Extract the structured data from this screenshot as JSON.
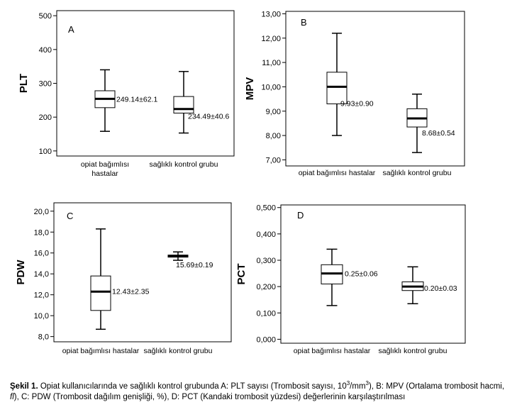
{
  "chart_data": [
    {
      "type": "boxplot",
      "panel_label": "A",
      "ylabel": "PLT",
      "ylim": [
        85,
        515
      ],
      "yticks": [
        100,
        200,
        300,
        400,
        500
      ],
      "ytick_labels": [
        "100",
        "200",
        "300",
        "400",
        "500"
      ],
      "categories": [
        [
          "opiat bağımlısı",
          "hastalar"
        ],
        [
          "sağlıklı kontrol grubu"
        ]
      ],
      "boxes": [
        {
          "min": 158,
          "q1": 228,
          "median": 254,
          "q3": 278,
          "max": 340,
          "label": "249.14±62.1"
        },
        {
          "min": 153,
          "q1": 212,
          "median": 224,
          "q3": 261,
          "max": 335,
          "label": "234.49±40.6"
        }
      ]
    },
    {
      "type": "boxplot",
      "panel_label": "B",
      "ylabel": "MPV",
      "ylim": [
        6.75,
        13.1
      ],
      "yticks": [
        7,
        8,
        9,
        10,
        11,
        12,
        13
      ],
      "ytick_labels": [
        "7,00",
        "8,00",
        "9,00",
        "10,00",
        "11,00",
        "12,00",
        "13,00"
      ],
      "categories": [
        [
          "opiat bağımlısı hastalar"
        ],
        [
          "sağlıklı kontrol grubu"
        ]
      ],
      "boxes": [
        {
          "min": 8.0,
          "q1": 9.3,
          "median": 10.0,
          "q3": 10.6,
          "max": 12.2,
          "label": "9.93±0.90"
        },
        {
          "min": 7.3,
          "q1": 8.35,
          "median": 8.7,
          "q3": 9.1,
          "max": 9.7,
          "label": "8.68±0.54"
        }
      ]
    },
    {
      "type": "boxplot",
      "panel_label": "C",
      "ylabel": "PDW",
      "ylim": [
        7.5,
        20.8
      ],
      "yticks": [
        8,
        10,
        12,
        14,
        16,
        18,
        20
      ],
      "ytick_labels": [
        "8,0",
        "10,0",
        "12,0",
        "14,0",
        "16,0",
        "18,0",
        "20,0"
      ],
      "categories": [
        [
          "opiat bağımlısı hastalar"
        ],
        [
          "sağlıklı kontrol grubu"
        ]
      ],
      "boxes": [
        {
          "min": 8.7,
          "q1": 10.5,
          "median": 12.3,
          "q3": 13.8,
          "max": 18.3,
          "label": "12.43±2.35"
        },
        {
          "min": 15.3,
          "q1": 15.6,
          "median": 15.7,
          "q3": 15.8,
          "max": 16.1,
          "label": "15.69±0.19"
        }
      ]
    },
    {
      "type": "boxplot",
      "panel_label": "D",
      "ylabel": "PCT",
      "ylim": [
        -0.015,
        0.51
      ],
      "yticks": [
        0,
        0.1,
        0.2,
        0.3,
        0.4,
        0.5
      ],
      "ytick_labels": [
        "0,000",
        "0,100",
        "0,200",
        "0,300",
        "0,400",
        "0,500"
      ],
      "categories": [
        [
          "opiat bağımlısı hastalar"
        ],
        [
          "sağlıklı kontrol grubu"
        ]
      ],
      "boxes": [
        {
          "min": 0.128,
          "q1": 0.21,
          "median": 0.25,
          "q3": 0.283,
          "max": 0.342,
          "label": "0.25±0.06"
        },
        {
          "min": 0.135,
          "q1": 0.185,
          "median": 0.2,
          "q3": 0.218,
          "max": 0.275,
          "label": "0.20±0.03"
        }
      ]
    }
  ],
  "caption": {
    "label": "Şekil 1.",
    "part1": " Opiat kullanıcılarında ve sağlıklı kontrol grubunda A: PLT sayısı (Trombosit sayısı, 10",
    "sup1": "3",
    "part2": "/mm",
    "sup2": "3",
    "part3": "), B: MPV (Ortalama trombosit hacmi, ",
    "italic": "fl",
    "part4": "), C: PDW (Trombosit dağılım genişliği, %), D: PCT (Kandaki trombosit yüzdesi) değerlerinin karşılaştırılması"
  }
}
